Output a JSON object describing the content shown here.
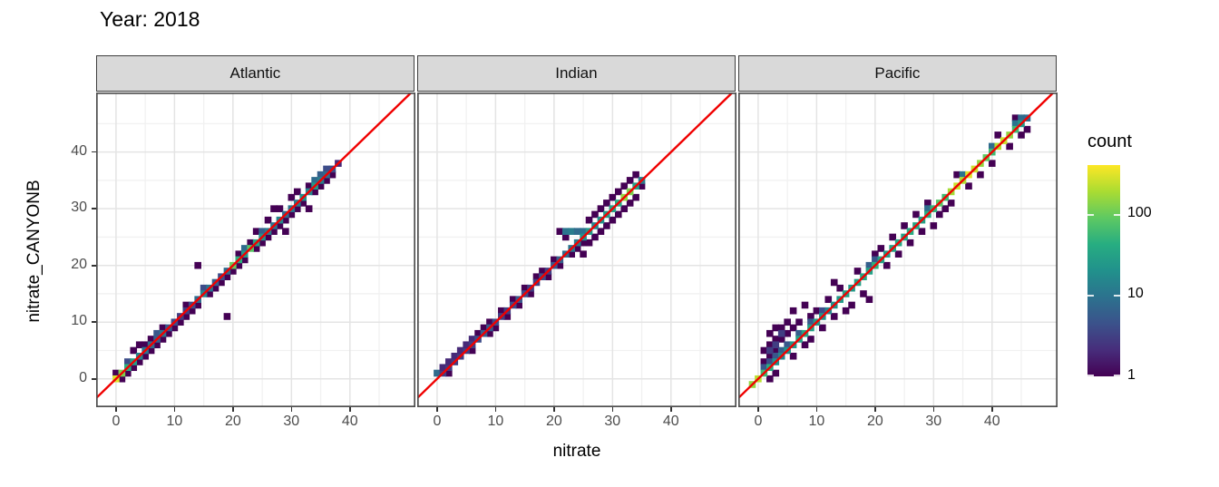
{
  "title": "Year: 2018",
  "legend": {
    "title": "count",
    "scale": "log10",
    "min": 1,
    "max": 400,
    "tick_labels": [
      "100",
      "10",
      "1"
    ],
    "tick_fractions_from_bottom": [
      0.769,
      0.385,
      0.0
    ]
  },
  "style": {
    "viridis_stops": [
      "#440154",
      "#472d7b",
      "#3b528b",
      "#2c728e",
      "#21918c",
      "#27ad81",
      "#5ec962",
      "#aadc32",
      "#fde725"
    ],
    "ref_line_color": "#f00000",
    "strip_bg": "#d9d9d9",
    "panel_border": "#4f4f4f",
    "grid_major": "#e4e4e4",
    "grid_minor": "#f1f1f1",
    "tick_label_color": "#4d4d4d"
  },
  "chart_data": {
    "type": "heatmap",
    "subtype": "bin2d",
    "title": "Year: 2018",
    "xlabel": "nitrate",
    "ylabel": "nitrate_CANYONB",
    "xlim": [
      -3.4,
      51.2
    ],
    "ylim": [
      -5.0,
      50.5
    ],
    "x_ticks": [
      0,
      10,
      20,
      30,
      40
    ],
    "y_ticks": [
      0,
      10,
      20,
      30,
      40
    ],
    "minor_ticks": [
      5,
      15,
      25,
      35,
      45
    ],
    "reference_line": "y = x",
    "legend_title": "count",
    "facets": [
      {
        "label": "Atlantic",
        "diag_start": 0,
        "diag_counts": [
          300,
          120,
          45,
          30,
          15,
          10,
          8,
          6,
          10,
          5,
          4,
          3,
          3,
          4,
          8,
          15,
          10,
          6,
          4,
          8,
          100,
          45,
          25,
          80,
          35,
          20,
          12,
          10,
          15,
          8,
          10,
          12,
          20,
          15,
          25,
          12,
          8,
          4,
          2
        ],
        "outlier_bins": [
          [
            0,
            1
          ],
          [
            1,
            0
          ],
          [
            2,
            1
          ],
          [
            3,
            2
          ],
          [
            3,
            5
          ],
          [
            4,
            3
          ],
          [
            4,
            6
          ],
          [
            5,
            4
          ],
          [
            5,
            6
          ],
          [
            6,
            5
          ],
          [
            6,
            7
          ],
          [
            7,
            6
          ],
          [
            8,
            7
          ],
          [
            8,
            9
          ],
          [
            9,
            8
          ],
          [
            10,
            9
          ],
          [
            11,
            10
          ],
          [
            12,
            11
          ],
          [
            12,
            13
          ],
          [
            13,
            12
          ],
          [
            14,
            13
          ],
          [
            14,
            20
          ],
          [
            16,
            15
          ],
          [
            17,
            16
          ],
          [
            18,
            17
          ],
          [
            19,
            11
          ],
          [
            19,
            18
          ],
          [
            20,
            19
          ],
          [
            21,
            20
          ],
          [
            21,
            22
          ],
          [
            22,
            21
          ],
          [
            23,
            24
          ],
          [
            24,
            23
          ],
          [
            24,
            26
          ],
          [
            25,
            24
          ],
          [
            26,
            25
          ],
          [
            26,
            28
          ],
          [
            27,
            26
          ],
          [
            27,
            30
          ],
          [
            28,
            27
          ],
          [
            29,
            26
          ],
          [
            29,
            28
          ],
          [
            28,
            30
          ],
          [
            30,
            29
          ],
          [
            30,
            32
          ],
          [
            31,
            30
          ],
          [
            31,
            33
          ],
          [
            32,
            31
          ],
          [
            33,
            30
          ],
          [
            33,
            34
          ],
          [
            34,
            33
          ],
          [
            35,
            34
          ],
          [
            36,
            35
          ],
          [
            37,
            36
          ]
        ],
        "extra_bins": [
          [
            2,
            3,
            4
          ],
          [
            7,
            8,
            5
          ],
          [
            15,
            16,
            4
          ],
          [
            22,
            23,
            8
          ],
          [
            25,
            26,
            6
          ],
          [
            34,
            35,
            8
          ],
          [
            35,
            36,
            6
          ],
          [
            36,
            37,
            4
          ]
        ]
      },
      {
        "label": "Indian",
        "diag_start": 6,
        "diag_counts": [
          3,
          4,
          6,
          5,
          4,
          3,
          3,
          4,
          5,
          4,
          3,
          3,
          4,
          3,
          5,
          6,
          8,
          10,
          12,
          20,
          25,
          15,
          20,
          25,
          30,
          40,
          150,
          120,
          30,
          12
        ],
        "outlier_bins": [
          [
            2,
            1
          ],
          [
            6,
            5
          ],
          [
            7,
            8
          ],
          [
            8,
            9
          ],
          [
            9,
            8
          ],
          [
            9,
            10
          ],
          [
            10,
            9
          ],
          [
            11,
            12
          ],
          [
            12,
            11
          ],
          [
            13,
            14
          ],
          [
            14,
            13
          ],
          [
            15,
            16
          ],
          [
            16,
            15
          ],
          [
            17,
            18
          ],
          [
            18,
            19
          ],
          [
            19,
            18
          ],
          [
            20,
            21
          ],
          [
            21,
            20
          ],
          [
            21,
            26
          ],
          [
            22,
            25
          ],
          [
            23,
            22
          ],
          [
            24,
            23
          ],
          [
            25,
            22
          ],
          [
            25,
            24
          ],
          [
            26,
            24
          ],
          [
            27,
            25
          ],
          [
            26,
            28
          ],
          [
            27,
            29
          ],
          [
            28,
            26
          ],
          [
            28,
            30
          ],
          [
            29,
            27
          ],
          [
            29,
            31
          ],
          [
            30,
            28
          ],
          [
            30,
            32
          ],
          [
            31,
            29
          ],
          [
            31,
            33
          ],
          [
            32,
            30
          ],
          [
            32,
            34
          ],
          [
            33,
            31
          ],
          [
            33,
            35
          ],
          [
            34,
            32
          ],
          [
            35,
            34
          ],
          [
            34,
            36
          ]
        ],
        "extra_bins": [
          [
            0,
            1,
            8
          ],
          [
            1,
            1,
            3
          ],
          [
            1,
            2,
            2
          ],
          [
            2,
            2,
            3
          ],
          [
            2,
            3,
            2
          ],
          [
            3,
            3,
            3
          ],
          [
            3,
            4,
            2
          ],
          [
            4,
            4,
            3
          ],
          [
            4,
            5,
            2
          ],
          [
            5,
            5,
            3
          ],
          [
            5,
            6,
            2
          ],
          [
            6,
            7,
            2
          ],
          [
            22,
            26,
            10
          ],
          [
            23,
            26,
            12
          ],
          [
            24,
            26,
            8
          ],
          [
            25,
            26,
            9
          ]
        ]
      },
      {
        "label": "Pacific",
        "diag_start": -1,
        "diag_counts": [
          150,
          220,
          60,
          40,
          20,
          15,
          20,
          25,
          30,
          35,
          30,
          25,
          20,
          15,
          20,
          25,
          30,
          25,
          30,
          35,
          30,
          45,
          30,
          25,
          30,
          35,
          30,
          40,
          35,
          30,
          40,
          50,
          80,
          60,
          180,
          250,
          200,
          300,
          250,
          150,
          90,
          60,
          200,
          250,
          150,
          60,
          25,
          8
        ],
        "outlier_bins": [
          [
            2,
            0
          ],
          [
            3,
            1
          ],
          [
            1,
            3
          ],
          [
            2,
            4
          ],
          [
            1,
            5
          ],
          [
            2,
            6
          ],
          [
            3,
            5
          ],
          [
            3,
            7
          ],
          [
            2,
            8
          ],
          [
            4,
            7
          ],
          [
            4,
            9
          ],
          [
            3,
            9
          ],
          [
            5,
            8
          ],
          [
            5,
            10
          ],
          [
            6,
            9
          ],
          [
            6,
            12
          ],
          [
            8,
            13
          ],
          [
            7,
            10
          ],
          [
            6,
            4
          ],
          [
            8,
            6
          ],
          [
            9,
            7
          ],
          [
            9,
            11
          ],
          [
            10,
            12
          ],
          [
            11,
            9
          ],
          [
            12,
            14
          ],
          [
            13,
            11
          ],
          [
            13,
            17
          ],
          [
            14,
            16
          ],
          [
            15,
            12
          ],
          [
            16,
            13
          ],
          [
            17,
            19
          ],
          [
            18,
            15
          ],
          [
            19,
            14
          ],
          [
            20,
            22
          ],
          [
            21,
            23
          ],
          [
            22,
            20
          ],
          [
            23,
            25
          ],
          [
            24,
            22
          ],
          [
            25,
            27
          ],
          [
            26,
            24
          ],
          [
            27,
            29
          ],
          [
            28,
            26
          ],
          [
            29,
            31
          ],
          [
            30,
            27
          ],
          [
            31,
            29
          ],
          [
            32,
            30
          ],
          [
            33,
            31
          ],
          [
            34,
            36
          ],
          [
            36,
            34
          ],
          [
            38,
            36
          ],
          [
            40,
            38
          ],
          [
            41,
            43
          ],
          [
            43,
            41
          ],
          [
            44,
            46
          ],
          [
            45,
            43
          ],
          [
            46,
            44
          ]
        ],
        "extra_bins": [
          [
            1,
            2,
            5
          ],
          [
            2,
            3,
            4
          ],
          [
            3,
            4,
            5
          ],
          [
            4,
            5,
            6
          ],
          [
            5,
            6,
            5
          ],
          [
            2,
            5,
            3
          ],
          [
            3,
            6,
            3
          ],
          [
            4,
            8,
            3
          ],
          [
            7,
            8,
            6
          ],
          [
            9,
            10,
            5
          ],
          [
            11,
            12,
            4
          ],
          [
            19,
            20,
            6
          ],
          [
            20,
            21,
            5
          ],
          [
            29,
            30,
            8
          ],
          [
            35,
            36,
            10
          ],
          [
            40,
            41,
            8
          ],
          [
            44,
            45,
            10
          ],
          [
            45,
            46,
            8
          ]
        ]
      }
    ]
  }
}
